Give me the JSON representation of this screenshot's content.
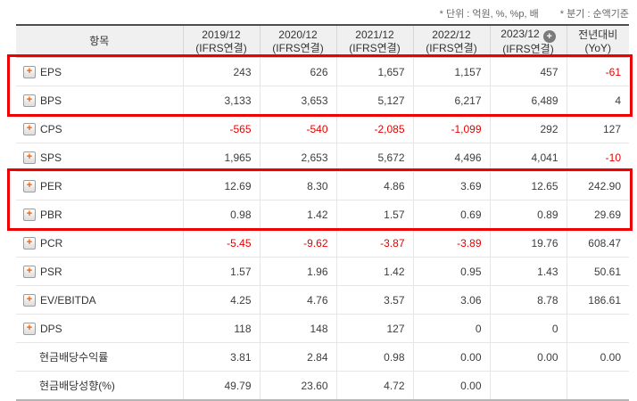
{
  "notes": {
    "unit": "* 단위 : 억원, %, %p, 배",
    "basis": "* 분기 : 순액기준"
  },
  "table": {
    "item_header": "항목",
    "columns": [
      {
        "year": "2019/12",
        "basis": "(IFRS연결)",
        "badge": false
      },
      {
        "year": "2020/12",
        "basis": "(IFRS연결)",
        "badge": false
      },
      {
        "year": "2021/12",
        "basis": "(IFRS연결)",
        "badge": false
      },
      {
        "year": "2022/12",
        "basis": "(IFRS연결)",
        "badge": false
      },
      {
        "year": "2023/12",
        "basis": "(IFRS연결)",
        "badge": true
      }
    ],
    "yoy_header": {
      "line1": "전년대비",
      "line2": "(YoY)"
    },
    "rows": [
      {
        "label": "EPS",
        "expandable": true,
        "values": [
          "243",
          "626",
          "1,657",
          "1,157",
          "457"
        ],
        "yoy": "-61"
      },
      {
        "label": "BPS",
        "expandable": true,
        "values": [
          "3,133",
          "3,653",
          "5,127",
          "6,217",
          "6,489"
        ],
        "yoy": "4"
      },
      {
        "label": "CPS",
        "expandable": true,
        "values": [
          "-565",
          "-540",
          "-2,085",
          "-1,099",
          "292"
        ],
        "yoy": "127"
      },
      {
        "label": "SPS",
        "expandable": true,
        "values": [
          "1,965",
          "2,653",
          "5,672",
          "4,496",
          "4,041"
        ],
        "yoy": "-10"
      },
      {
        "label": "PER",
        "expandable": true,
        "values": [
          "12.69",
          "8.30",
          "4.86",
          "3.69",
          "12.65"
        ],
        "yoy": "242.90"
      },
      {
        "label": "PBR",
        "expandable": true,
        "values": [
          "0.98",
          "1.42",
          "1.57",
          "0.69",
          "0.89"
        ],
        "yoy": "29.69"
      },
      {
        "label": "PCR",
        "expandable": true,
        "values": [
          "-5.45",
          "-9.62",
          "-3.87",
          "-3.89",
          "19.76"
        ],
        "yoy": "608.47"
      },
      {
        "label": "PSR",
        "expandable": true,
        "values": [
          "1.57",
          "1.96",
          "1.42",
          "0.95",
          "1.43"
        ],
        "yoy": "50.61"
      },
      {
        "label": "EV/EBITDA",
        "expandable": true,
        "values": [
          "4.25",
          "4.76",
          "3.57",
          "3.06",
          "8.78"
        ],
        "yoy": "186.61"
      },
      {
        "label": "DPS",
        "expandable": true,
        "values": [
          "118",
          "148",
          "127",
          "0",
          "0"
        ],
        "yoy": ""
      },
      {
        "label": "현금배당수익률",
        "expandable": false,
        "values": [
          "3.81",
          "2.84",
          "0.98",
          "0.00",
          "0.00"
        ],
        "yoy": "0.00"
      },
      {
        "label": "현금배당성향(%)",
        "expandable": false,
        "values": [
          "49.79",
          "23.60",
          "4.72",
          "0.00",
          ""
        ],
        "yoy": ""
      }
    ],
    "highlights": [
      {
        "start": 0,
        "end": 1
      },
      {
        "start": 4,
        "end": 5
      }
    ]
  },
  "icons": {
    "expand": "plus-icon",
    "add_column": "plus-circle-icon"
  },
  "colors": {
    "negative_red": "#e60000",
    "highlight_red": "#ee0000",
    "plus_orange": "#f25b00",
    "badge_gray": "#7a7a7a",
    "header_bg": "#f0f0f0"
  }
}
